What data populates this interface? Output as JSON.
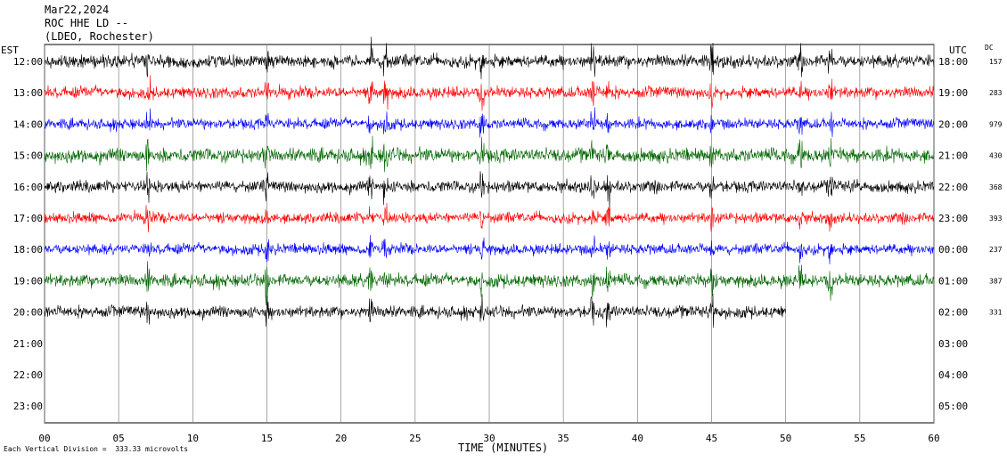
{
  "header": {
    "date": "Mar22,2024",
    "station": "ROC HHE LD --",
    "network": "(LDEO, Rochester)"
  },
  "left_tz": "EST",
  "right_tz": "UTC",
  "dc_label": "DC",
  "footnote": "Each Vertical Division =  333.33 microvolts",
  "chart_data": {
    "type": "line",
    "title": "",
    "xlabel": "TIME (MINUTES)",
    "xlim": [
      0,
      60
    ],
    "x_ticks": [
      "00",
      "05",
      "10",
      "15",
      "20",
      "25",
      "30",
      "35",
      "40",
      "45",
      "50",
      "55",
      "60"
    ],
    "left_hour_labels": [
      "12:00",
      "13:00",
      "14:00",
      "15:00",
      "16:00",
      "17:00",
      "18:00",
      "19:00",
      "20:00",
      "21:00",
      "22:00",
      "23:00"
    ],
    "right_hour_labels": [
      "18:00",
      "19:00",
      "20:00",
      "21:00",
      "22:00",
      "23:00",
      "00:00",
      "01:00",
      "02:00",
      "03:00",
      "04:00",
      "05:00"
    ],
    "dc_values": [
      "157",
      "283",
      "979",
      "430",
      "368",
      "393",
      "237",
      "387",
      "331"
    ],
    "trace_colors": [
      "#000000",
      "#ff0000",
      "#0000ff",
      "#006400"
    ],
    "traces": [
      {
        "hour": "12:00",
        "color": "#000000",
        "end_minute": 60,
        "amplitude": 12
      },
      {
        "hour": "13:00",
        "color": "#ff0000",
        "end_minute": 60,
        "amplitude": 11
      },
      {
        "hour": "14:00",
        "color": "#0000ff",
        "end_minute": 60,
        "amplitude": 10
      },
      {
        "hour": "15:00",
        "color": "#006400",
        "end_minute": 60,
        "amplitude": 13
      },
      {
        "hour": "16:00",
        "color": "#000000",
        "end_minute": 60,
        "amplitude": 11
      },
      {
        "hour": "17:00",
        "color": "#ff0000",
        "end_minute": 60,
        "amplitude": 10
      },
      {
        "hour": "18:00",
        "color": "#0000ff",
        "end_minute": 60,
        "amplitude": 10
      },
      {
        "hour": "19:00",
        "color": "#006400",
        "end_minute": 60,
        "amplitude": 12
      },
      {
        "hour": "20:00",
        "color": "#000000",
        "end_minute": 50,
        "amplitude": 11
      }
    ],
    "grid": {
      "vertical": true,
      "horizontal": false
    }
  }
}
